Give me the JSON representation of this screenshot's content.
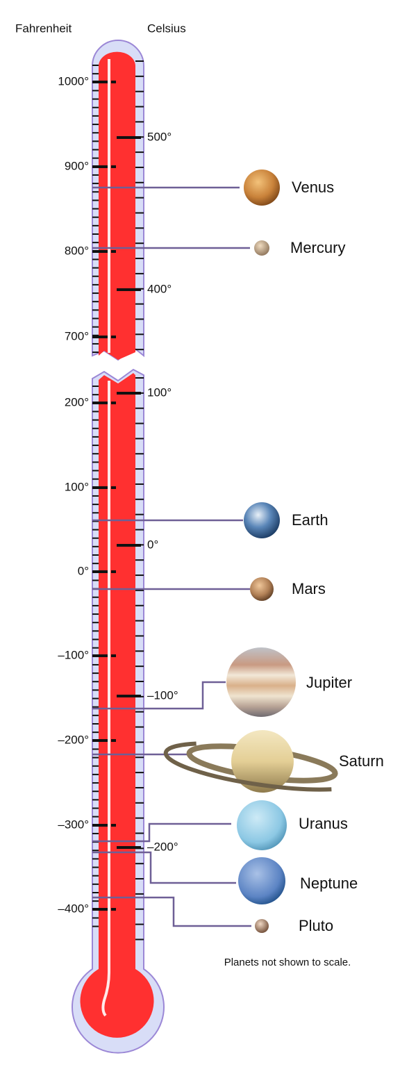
{
  "headers": {
    "fahrenheit": "Fahrenheit",
    "celsius": "Celsius"
  },
  "fahrenheit_ticks": [
    "1000°",
    "900°",
    "800°",
    "700°",
    "200°",
    "100°",
    "0°",
    "–100°",
    "–200°",
    "–300°",
    "–400°"
  ],
  "celsius_ticks": [
    "500°",
    "400°",
    "100°",
    "0°",
    "–100°",
    "–200°"
  ],
  "planets": [
    {
      "label": "Venus"
    },
    {
      "label": "Mercury"
    },
    {
      "label": "Earth"
    },
    {
      "label": "Mars"
    },
    {
      "label": "Jupiter"
    },
    {
      "label": "Saturn"
    },
    {
      "label": "Uranus"
    },
    {
      "label": "Neptune"
    },
    {
      "label": "Pluto"
    }
  ],
  "note": "Planets not shown to scale."
}
